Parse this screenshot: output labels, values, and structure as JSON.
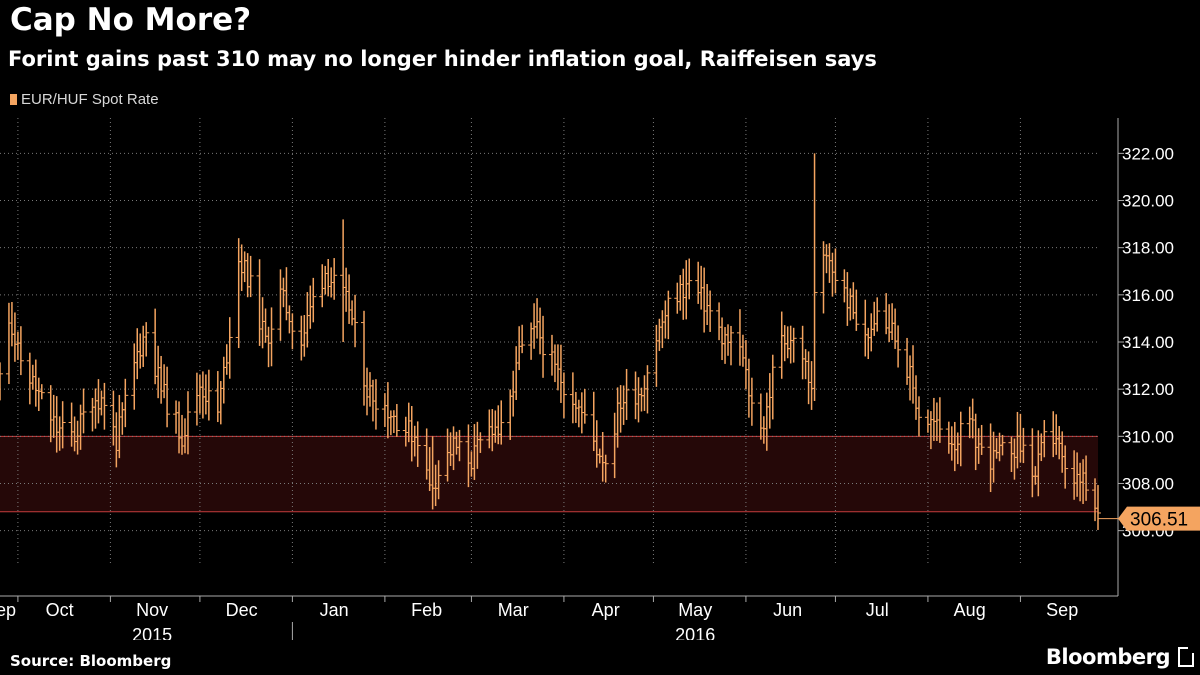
{
  "header": {
    "title": "Cap No More?",
    "subtitle": "Forint gains past 310 may no longer hinder inflation goal, Raiffeisen says"
  },
  "footer": {
    "source": "Source: Bloomberg",
    "brand": "Bloomberg"
  },
  "colors": {
    "background": "#000000",
    "series": "#f4a460",
    "band_fill": "#250808",
    "band_line": "#c43c3c",
    "grid": "#7a7a7a",
    "axis": "#aaaaaa"
  },
  "chart_data": {
    "type": "bar",
    "style": "ohlc-range-bars",
    "legend": [
      {
        "name": "EUR/HUF Spot Rate",
        "color": "#f4a460"
      }
    ],
    "legend_position": "top-left",
    "y_axis": {
      "position": "right",
      "range": [
        304.5,
        323.5
      ],
      "ticks": [
        "306.00",
        "308.00",
        "310.00",
        "312.00",
        "314.00",
        "316.00",
        "318.00",
        "320.00",
        "322.00"
      ]
    },
    "x_axis": {
      "range": [
        "2015-09-25",
        "2016-09-27"
      ],
      "months": [
        {
          "label": "Sep",
          "date": "2015-09-25"
        },
        {
          "label": "Oct",
          "date": "2015-10-15"
        },
        {
          "label": "Nov",
          "date": "2015-11-15"
        },
        {
          "label": "Dec",
          "date": "2015-12-15"
        },
        {
          "label": "Jan",
          "date": "2016-01-15"
        },
        {
          "label": "Feb",
          "date": "2016-02-15"
        },
        {
          "label": "Mar",
          "date": "2016-03-15"
        },
        {
          "label": "Apr",
          "date": "2016-04-15"
        },
        {
          "label": "May",
          "date": "2016-05-15"
        },
        {
          "label": "Jun",
          "date": "2016-06-15"
        },
        {
          "label": "Jul",
          "date": "2016-07-15"
        },
        {
          "label": "Aug",
          "date": "2016-08-15"
        },
        {
          "label": "Sep",
          "date": "2016-09-15"
        }
      ],
      "month_gridlines": [
        "2015-10-01",
        "2015-11-01",
        "2015-12-01",
        "2016-01-01",
        "2016-02-01",
        "2016-03-01",
        "2016-04-01",
        "2016-05-01",
        "2016-06-01",
        "2016-07-01",
        "2016-08-01",
        "2016-09-01"
      ],
      "years": [
        {
          "label": "2015",
          "date": "2015-11-15"
        },
        {
          "label": "2016",
          "date": "2016-05-15"
        }
      ],
      "year_divider": "2016-01-01"
    },
    "band": {
      "from": 306.8,
      "to": 310.0
    },
    "last_value": 306.51,
    "last_value_label": "306.51",
    "grid": true,
    "anchors": [
      [
        "2015-09-25",
        312.5
      ],
      [
        "2015-09-28",
        315.2
      ],
      [
        "2015-10-01",
        313.5
      ],
      [
        "2015-10-07",
        312.0
      ],
      [
        "2015-10-14",
        310.3
      ],
      [
        "2015-10-20",
        310.0
      ],
      [
        "2015-10-26",
        311.7
      ],
      [
        "2015-10-30",
        311.5
      ],
      [
        "2015-11-03",
        309.8
      ],
      [
        "2015-11-10",
        313.5
      ],
      [
        "2015-11-13",
        314.5
      ],
      [
        "2015-11-18",
        312.0
      ],
      [
        "2015-11-25",
        310.0
      ],
      [
        "2015-12-01",
        312.2
      ],
      [
        "2015-12-07",
        311.0
      ],
      [
        "2015-12-10",
        313.5
      ],
      [
        "2015-12-14",
        317.5
      ],
      [
        "2015-12-17",
        316.8
      ],
      [
        "2015-12-23",
        314.0
      ],
      [
        "2015-12-28",
        316.0
      ],
      [
        "2016-01-04",
        314.0
      ],
      [
        "2016-01-08",
        315.8
      ],
      [
        "2016-01-12",
        317.0
      ],
      [
        "2016-01-20",
        315.5
      ],
      [
        "2016-01-26",
        312.0
      ],
      [
        "2016-02-01",
        311.3
      ],
      [
        "2016-02-08",
        310.3
      ],
      [
        "2016-02-12",
        310.0
      ],
      [
        "2016-02-16",
        307.8
      ],
      [
        "2016-02-24",
        309.6
      ],
      [
        "2016-03-01",
        309.0
      ],
      [
        "2016-03-08",
        310.5
      ],
      [
        "2016-03-12",
        310.0
      ],
      [
        "2016-03-17",
        313.5
      ],
      [
        "2016-03-23",
        314.5
      ],
      [
        "2016-03-29",
        312.8
      ],
      [
        "2016-04-05",
        311.5
      ],
      [
        "2016-04-12",
        309.5
      ],
      [
        "2016-04-15",
        309.0
      ],
      [
        "2016-04-20",
        311.5
      ],
      [
        "2016-04-27",
        312.0
      ],
      [
        "2016-05-02",
        314.2
      ],
      [
        "2016-05-07",
        315.8
      ],
      [
        "2016-05-13",
        316.5
      ],
      [
        "2016-05-19",
        315.5
      ],
      [
        "2016-05-24",
        314.2
      ],
      [
        "2016-05-30",
        313.8
      ],
      [
        "2016-06-03",
        311.3
      ],
      [
        "2016-06-07",
        310.5
      ],
      [
        "2016-06-12",
        314.0
      ],
      [
        "2016-06-16",
        314.2
      ],
      [
        "2016-06-20",
        313.5
      ],
      [
        "2016-06-23",
        311.8
      ],
      [
        "2016-06-24",
        316.5
      ],
      [
        "2016-06-28",
        317.5
      ],
      [
        "2016-07-01",
        316.8
      ],
      [
        "2016-07-05",
        315.8
      ],
      [
        "2016-07-11",
        314.0
      ],
      [
        "2016-07-15",
        315.5
      ],
      [
        "2016-07-20",
        314.5
      ],
      [
        "2016-07-25",
        313.0
      ],
      [
        "2016-07-29",
        311.0
      ],
      [
        "2016-08-05",
        310.3
      ],
      [
        "2016-08-10",
        309.8
      ],
      [
        "2016-08-15",
        310.5
      ],
      [
        "2016-08-19",
        309.3
      ],
      [
        "2016-08-23",
        309.0
      ],
      [
        "2016-08-29",
        309.6
      ],
      [
        "2016-09-02",
        309.5
      ],
      [
        "2016-09-06",
        308.3
      ],
      [
        "2016-09-09",
        309.8
      ],
      [
        "2016-09-13",
        310.0
      ],
      [
        "2016-09-16",
        308.3
      ],
      [
        "2016-09-22",
        308.0
      ],
      [
        "2016-09-27",
        306.5
      ]
    ]
  }
}
